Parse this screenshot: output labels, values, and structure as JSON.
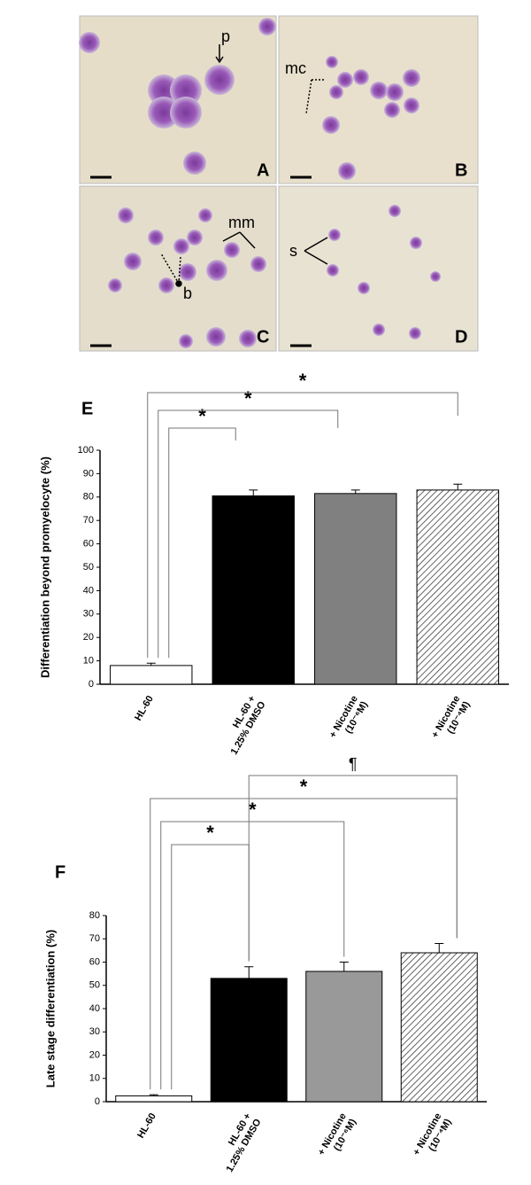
{
  "panels": {
    "A": {
      "letter": "A",
      "arrow": "p"
    },
    "B": {
      "letter": "B",
      "arrow": "mc"
    },
    "C": {
      "letter": "C",
      "arrows": [
        "mm",
        "b"
      ]
    },
    "D": {
      "letter": "D",
      "arrow": "s"
    }
  },
  "chart_data": [
    {
      "type": "bar",
      "panel": "E",
      "ylabel": "Differentiation beyond promyelocyte (%)",
      "categories": [
        [
          "HL-60"
        ],
        [
          "HL-60 +",
          "1.25% DMSO"
        ],
        [
          "+ Nicotine",
          "(10⁻⁶M)"
        ],
        [
          "+ Nicotine",
          "(10⁻⁴M)"
        ]
      ],
      "values": [
        8,
        80.5,
        81.5,
        83
      ],
      "errors": [
        1,
        2.5,
        1.5,
        2.5
      ],
      "colors": [
        "#ffffff",
        "#000000",
        "#808080",
        "#ffffff"
      ],
      "hatch": [
        false,
        false,
        false,
        true
      ],
      "ylim": [
        0,
        100
      ],
      "yticks": [
        0,
        10,
        20,
        30,
        40,
        50,
        60,
        70,
        80,
        90,
        100
      ],
      "annotations": [
        {
          "text": "*",
          "from": 0,
          "to": 1
        },
        {
          "text": "*",
          "from": 0,
          "to": 2
        },
        {
          "text": "*",
          "from": 0,
          "to": 3
        }
      ]
    },
    {
      "type": "bar",
      "panel": "F",
      "ylabel": "Late stage differentiation (%)",
      "categories": [
        [
          "HL-60"
        ],
        [
          "HL-60 +",
          "1.25% DMSO"
        ],
        [
          "+ Nicotine",
          "(10⁻⁶M)"
        ],
        [
          "+ Nicotine",
          "(10⁻⁴M)"
        ]
      ],
      "values": [
        2.5,
        53,
        56,
        64
      ],
      "errors": [
        0.5,
        5,
        4,
        4
      ],
      "colors": [
        "#ffffff",
        "#000000",
        "#999999",
        "#ffffff"
      ],
      "hatch": [
        false,
        false,
        false,
        true
      ],
      "ylim": [
        0,
        80
      ],
      "yticks": [
        0,
        10,
        20,
        30,
        40,
        50,
        60,
        70,
        80
      ],
      "annotations": [
        {
          "text": "*",
          "from": 0,
          "to": 1
        },
        {
          "text": "*",
          "from": 0,
          "to": 2
        },
        {
          "text": "*",
          "from": 0,
          "to": 3
        },
        {
          "text": "¶",
          "from": 1,
          "to": 3
        }
      ]
    }
  ]
}
